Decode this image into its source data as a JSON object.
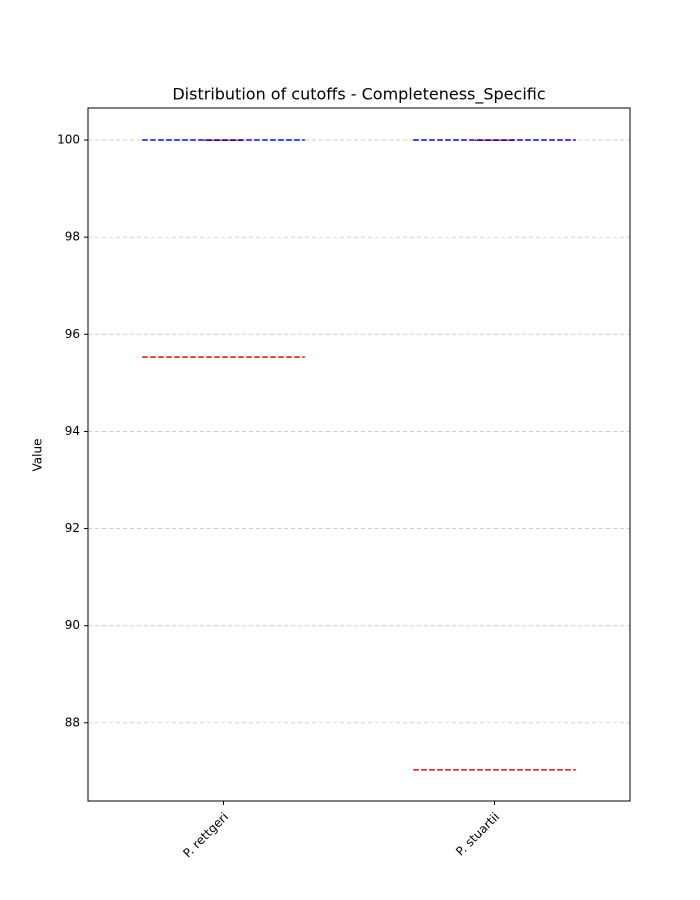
{
  "chart_data": {
    "type": "box",
    "title": "Distribution of cutoffs - Completeness_Specific",
    "y_label": "Value",
    "categories": [
      "P. rettgeri",
      "P. stuartii"
    ],
    "boxes": [
      {
        "whislo": 100,
        "q1": 100,
        "median": 100,
        "q3": 100,
        "whishi": 100
      },
      {
        "whislo": 100,
        "q1": 100,
        "median": 100,
        "q3": 100,
        "whishi": 100
      }
    ],
    "box_color": "#000000",
    "median_color": "#ff7f0e",
    "reference_lines": [
      {
        "color": "#0000ff",
        "values": [
          100,
          100
        ]
      },
      {
        "color": "#ff0000",
        "values": [
          95.53,
          87.03
        ]
      }
    ],
    "xlim": [
      0.5,
      2.5
    ],
    "ylim": [
      86.39,
      100.66
    ],
    "yticks": [
      88,
      90,
      92,
      94,
      96,
      98,
      100
    ],
    "grid": true
  }
}
